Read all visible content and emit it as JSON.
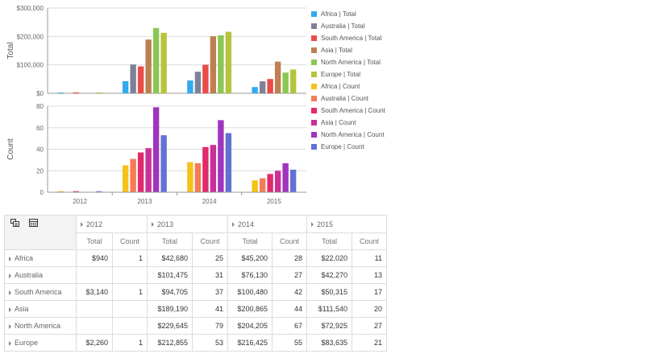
{
  "chart_data": {
    "type": "bar",
    "categories": [
      "2012",
      "2013",
      "2014",
      "2015"
    ],
    "panels": [
      {
        "ylabel": "Total",
        "ylim": [
          0,
          300000
        ],
        "yticks": [
          0,
          100000,
          200000,
          300000
        ],
        "ytick_labels": [
          "$0",
          "$100,000",
          "$200,000",
          "$300,000"
        ],
        "series": [
          {
            "name": "Africa | Total",
            "color": "#33aaee",
            "values": [
              940,
              42680,
              45200,
              22020
            ]
          },
          {
            "name": "Australia | Total",
            "color": "#7e8299",
            "values": [
              null,
              101475,
              76130,
              42270
            ]
          },
          {
            "name": "South America | Total",
            "color": "#ea4c48",
            "values": [
              3140,
              94705,
              100480,
              50315
            ]
          },
          {
            "name": "Asia | Total",
            "color": "#c07f50",
            "values": [
              null,
              189190,
              200865,
              111540
            ]
          },
          {
            "name": "North America | Total",
            "color": "#8bc654",
            "values": [
              null,
              229645,
              204205,
              72925
            ]
          },
          {
            "name": "Europe | Total",
            "color": "#b6c43c",
            "values": [
              2260,
              212855,
              216425,
              83635
            ]
          }
        ]
      },
      {
        "ylabel": "Count",
        "ylim": [
          0,
          80
        ],
        "yticks": [
          0,
          20,
          40,
          60,
          80
        ],
        "ytick_labels": [
          "0",
          "20",
          "40",
          "60",
          "80"
        ],
        "series": [
          {
            "name": "Africa | Count",
            "color": "#f6c219",
            "values": [
              1,
              25,
              28,
              11
            ]
          },
          {
            "name": "Australia | Count",
            "color": "#f47b55",
            "values": [
              null,
              31,
              27,
              13
            ]
          },
          {
            "name": "South America | Count",
            "color": "#e02a6d",
            "values": [
              1,
              37,
              42,
              17
            ]
          },
          {
            "name": "Asia | Count",
            "color": "#c93198",
            "values": [
              null,
              41,
              44,
              20
            ]
          },
          {
            "name": "North America | Count",
            "color": "#a035bd",
            "values": [
              null,
              79,
              67,
              27
            ]
          },
          {
            "name": "Europe | Count",
            "color": "#6272d4",
            "values": [
              1,
              53,
              55,
              21
            ]
          }
        ]
      }
    ],
    "legend_position": "right"
  },
  "grid": {
    "years": [
      "2012",
      "2013",
      "2014",
      "2015"
    ],
    "measures": [
      "Total",
      "Count"
    ],
    "rows": [
      {
        "label": "Africa",
        "cells": [
          "$940",
          "1",
          "$42,680",
          "25",
          "$45,200",
          "28",
          "$22,020",
          "11"
        ]
      },
      {
        "label": "Australia",
        "cells": [
          "",
          "",
          "$101,475",
          "31",
          "$76,130",
          "27",
          "$42,270",
          "13"
        ]
      },
      {
        "label": "South America",
        "cells": [
          "$3,140",
          "1",
          "$94,705",
          "37",
          "$100,480",
          "42",
          "$50,315",
          "17"
        ]
      },
      {
        "label": "Asia",
        "cells": [
          "",
          "",
          "$189,190",
          "41",
          "$200,865",
          "44",
          "$111,540",
          "20"
        ]
      },
      {
        "label": "North America",
        "cells": [
          "",
          "",
          "$229,645",
          "79",
          "$204,205",
          "67",
          "$72,925",
          "27"
        ]
      },
      {
        "label": "Europe",
        "cells": [
          "$2,260",
          "1",
          "$212,855",
          "53",
          "$216,425",
          "55",
          "$83,635",
          "21"
        ]
      }
    ]
  }
}
